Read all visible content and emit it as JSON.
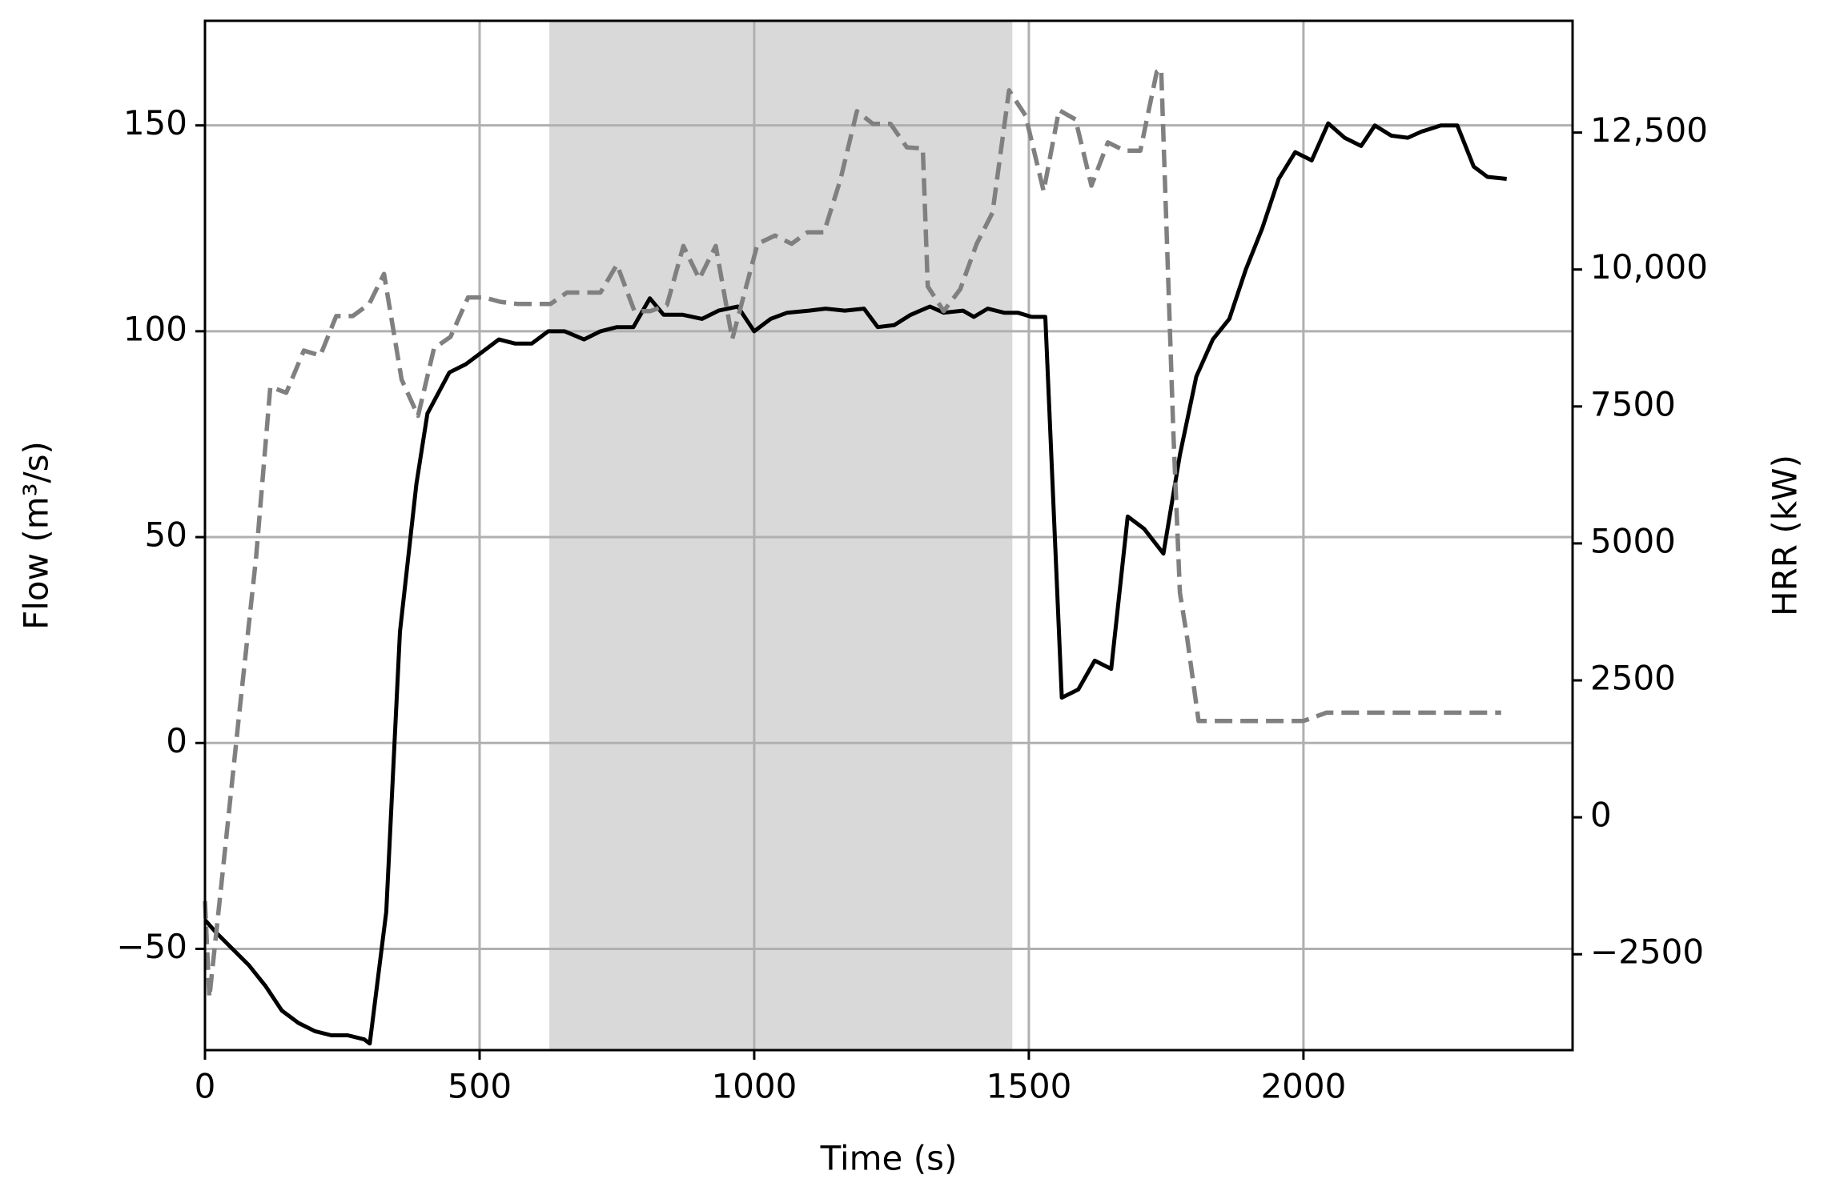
{
  "chart_data": {
    "type": "line",
    "xlabel": "Time (s)",
    "ylabel": "Flow (m³/s)",
    "y2label": "HRR (kW)",
    "xlim": [
      0,
      2490
    ],
    "ylim": [
      -74.6,
      175.4
    ],
    "y2lim": [
      -4250,
      14540
    ],
    "xticks": [
      0,
      500,
      1000,
      1500,
      2000
    ],
    "yticks": [
      {
        "value": -50,
        "label": "−50"
      },
      0,
      50,
      100,
      150
    ],
    "y2ticks": [
      {
        "value": -2500,
        "label": "−2500"
      },
      0,
      2500,
      5000,
      7500,
      {
        "value": 10000,
        "label": "10,000"
      },
      {
        "value": 12500,
        "label": "12,500"
      }
    ],
    "grid": true,
    "y2color": "#808080",
    "shaded_span": {
      "xmin": 627,
      "xmax": 1470,
      "color": "#d9d9d9"
    },
    "series": [
      {
        "color": "#000000",
        "linestyle": "solid",
        "x": [
          0,
          20,
          50,
          80,
          110,
          140,
          170,
          200,
          230,
          260,
          290,
          300,
          330,
          355,
          385,
          405,
          445,
          475,
          505,
          535,
          565,
          595,
          625,
          655,
          690,
          720,
          750,
          780,
          810,
          835,
          870,
          905,
          935,
          970,
          1000,
          1030,
          1060,
          1100,
          1130,
          1165,
          1200,
          1225,
          1255,
          1285,
          1320,
          1345,
          1380,
          1400,
          1425,
          1455,
          1480,
          1505,
          1530,
          1560,
          1590,
          1620,
          1650,
          1680,
          1710,
          1745,
          1775,
          1805,
          1835,
          1865,
          1895,
          1925,
          1955,
          1985,
          2015,
          2045,
          2075,
          2105,
          2130,
          2160,
          2190,
          2215,
          2250,
          2280,
          2310,
          2335,
          2370
        ],
        "values": [
          -43,
          -46,
          -50,
          -54,
          -59,
          -65,
          -68,
          -70,
          -71,
          -71,
          -72,
          -73,
          -41,
          27,
          63,
          80,
          90,
          92,
          95,
          98,
          97,
          97,
          100,
          100,
          98,
          100,
          101,
          101,
          108,
          104,
          104,
          103,
          105,
          106,
          100,
          103,
          104.5,
          105,
          105.5,
          105,
          105.5,
          101,
          101.5,
          104,
          106,
          104.5,
          105,
          103.5,
          105.5,
          104.5,
          104.5,
          103.5,
          103.5,
          11,
          13,
          20,
          18,
          55,
          52,
          46,
          70,
          89,
          98,
          103,
          115,
          125,
          137,
          143.5,
          141.5,
          150.5,
          147,
          145,
          150,
          147.5,
          147,
          148.5,
          150,
          150,
          140,
          137.5,
          137
        ]
      },
      {
        "color": "#808080",
        "linestyle": "dashed",
        "axis": "y2",
        "x": [
          0,
          8,
          30,
          61,
          93,
          119,
          148,
          180,
          210,
          239,
          269,
          299,
          326,
          358,
          388,
          417,
          447,
          479,
          508,
          538,
          570,
          600,
          629,
          659,
          691,
          720,
          750,
          782,
          811,
          841,
          871,
          900,
          930,
          960,
          1006,
          1038,
          1068,
          1097,
          1127,
          1157,
          1187,
          1216,
          1248,
          1278,
          1307,
          1316,
          1345,
          1375,
          1405,
          1434,
          1464,
          1494,
          1527,
          1555,
          1585,
          1614,
          1644,
          1674,
          1703,
          1733,
          1741,
          1763,
          1775,
          1788,
          1809,
          1850,
          1900,
          1950,
          2000,
          2042,
          2100,
          2150,
          2200,
          2250,
          2300,
          2360
        ],
        "values": [
          -1530,
          -3290,
          -1210,
          1760,
          4740,
          7860,
          7750,
          8520,
          8430,
          9150,
          9150,
          9370,
          9920,
          7990,
          7330,
          8560,
          8770,
          9490,
          9490,
          9410,
          9370,
          9370,
          9370,
          9580,
          9580,
          9580,
          10090,
          9240,
          9240,
          9350,
          10430,
          9830,
          10430,
          8730,
          10470,
          10620,
          10470,
          10680,
          10680,
          11640,
          12890,
          12660,
          12660,
          12230,
          12210,
          9690,
          9240,
          9640,
          10470,
          11040,
          13270,
          12810,
          11430,
          12910,
          12740,
          11530,
          12320,
          12170,
          12170,
          13610,
          13660,
          7070,
          4100,
          3290,
          1760,
          1760,
          1760,
          1760,
          1760,
          1910,
          1910,
          1910,
          1910,
          1910,
          1910,
          1910
        ]
      }
    ]
  }
}
